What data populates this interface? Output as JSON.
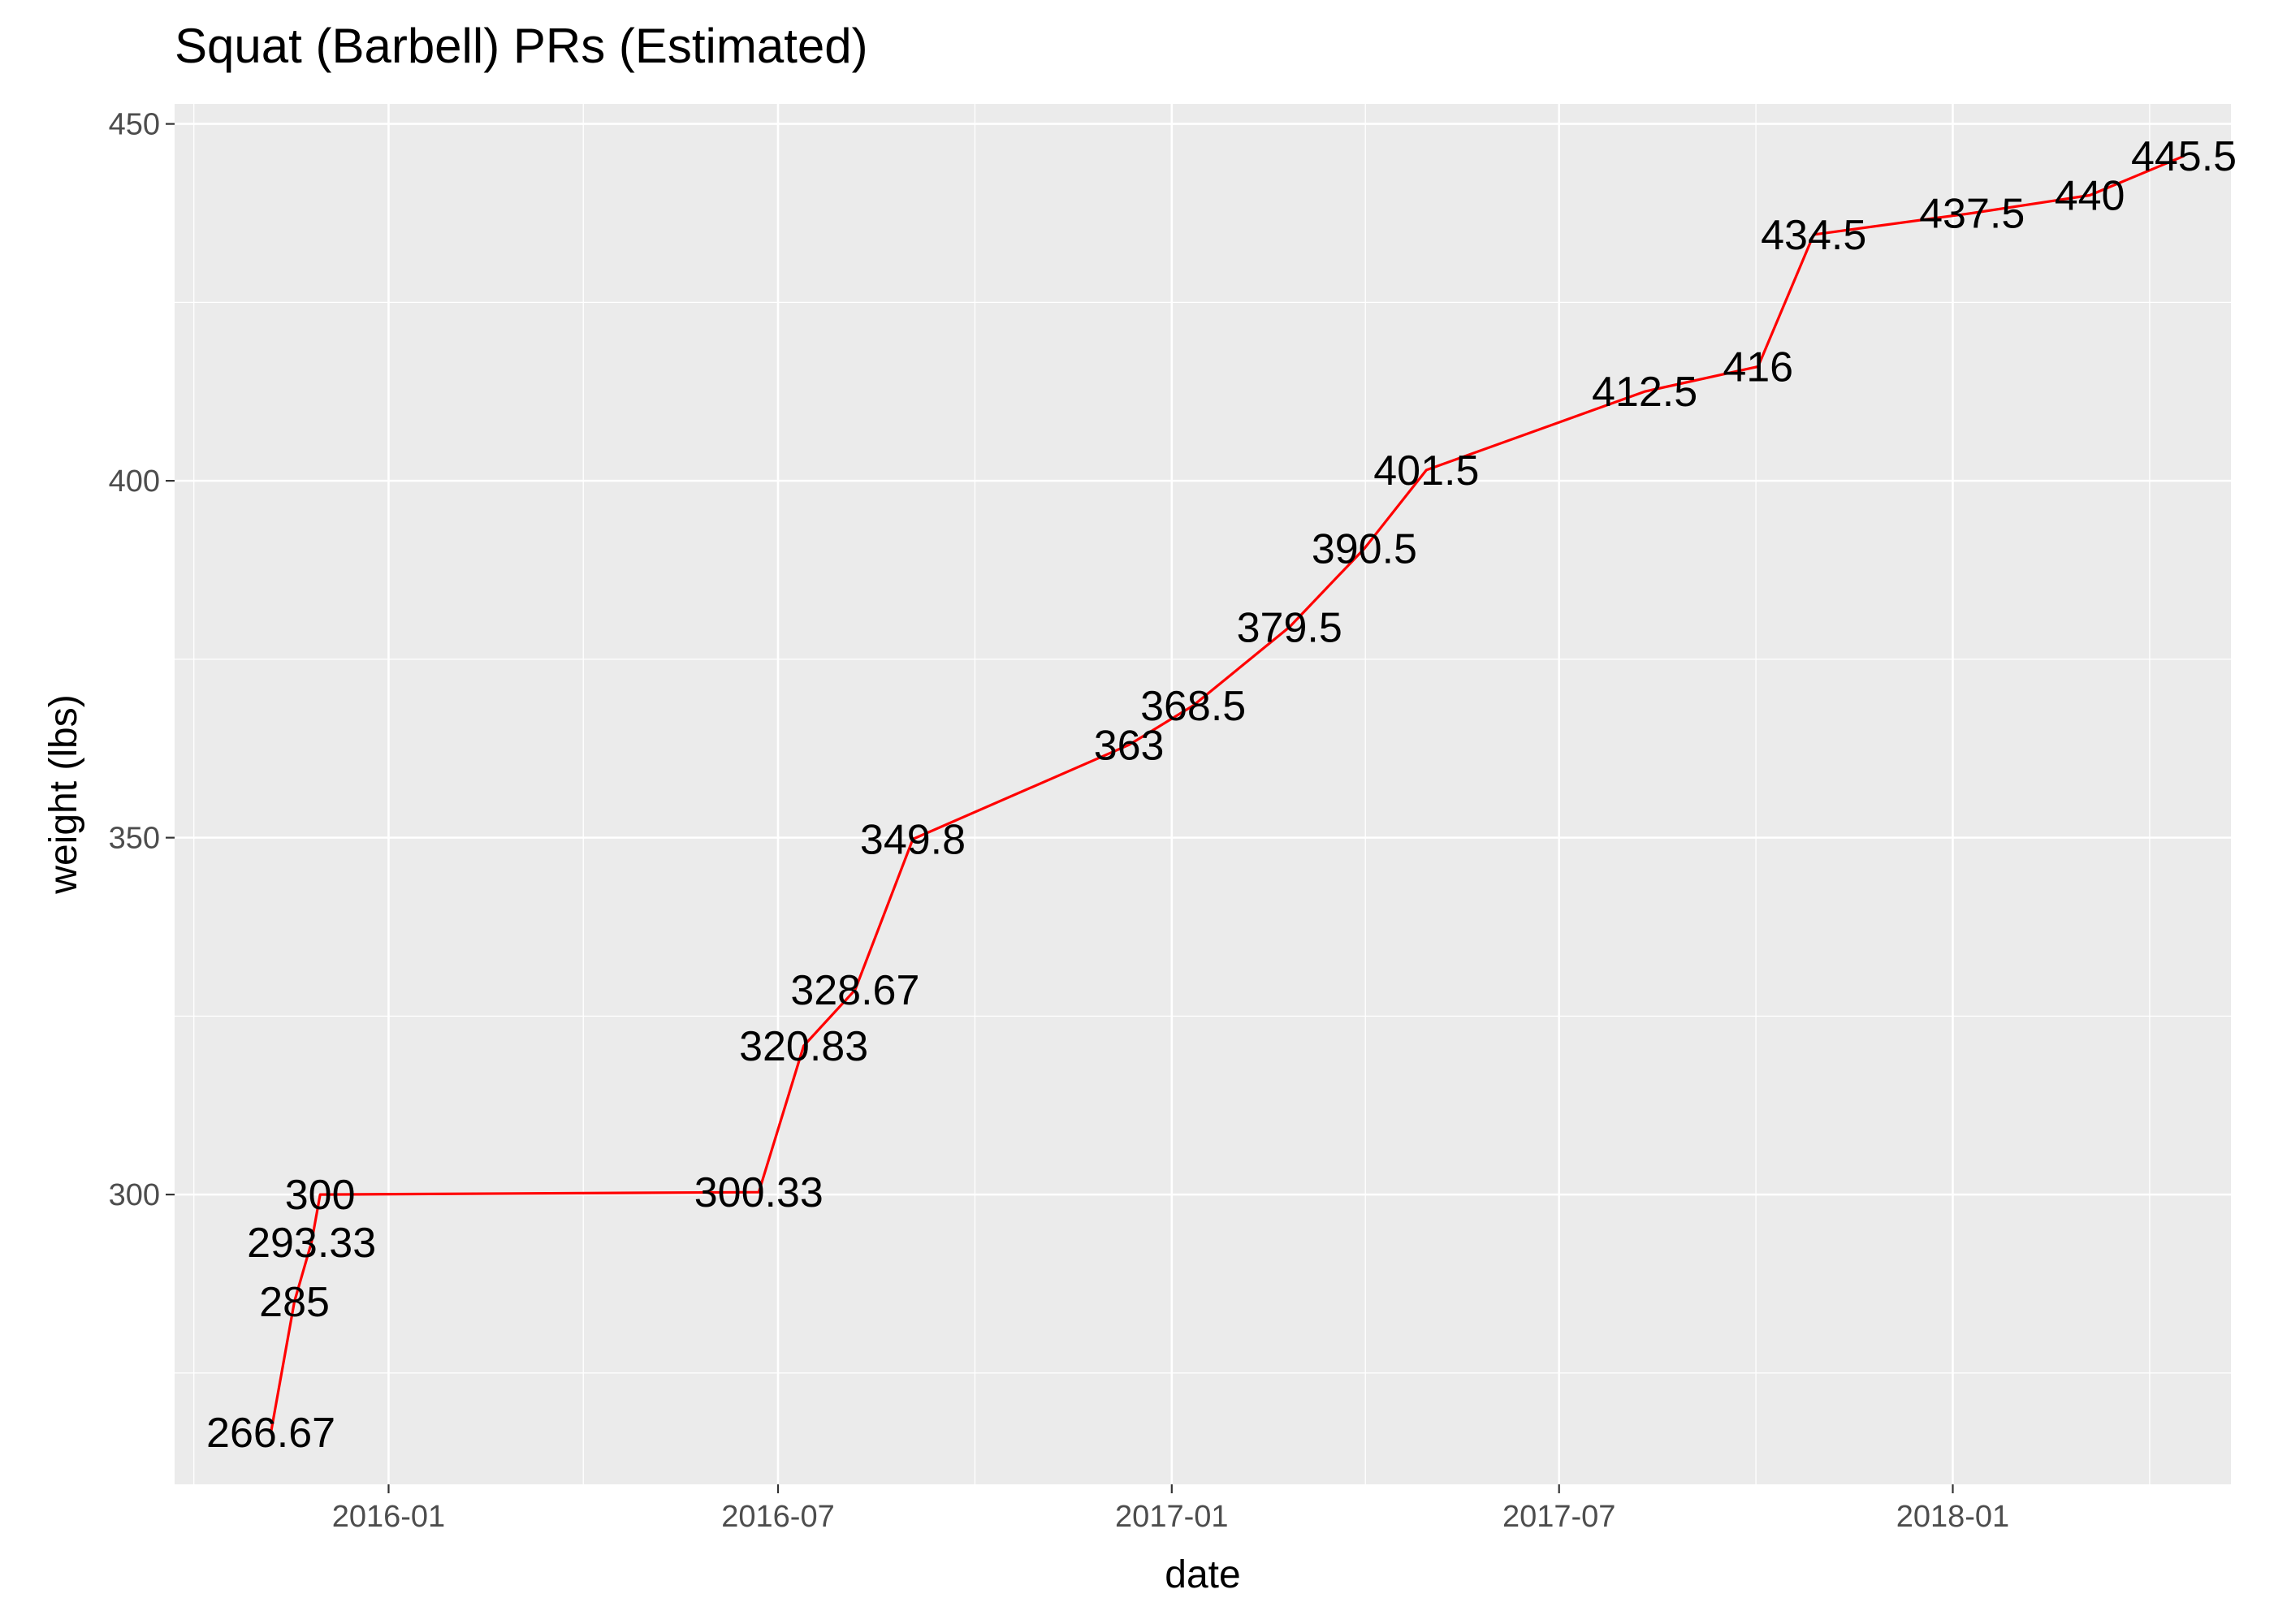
{
  "title": "Squat (Barbell) PRs (Estimated)",
  "chart_data": {
    "type": "line",
    "title": "Squat (Barbell) PRs (Estimated)",
    "xlabel": "date",
    "ylabel": "weight (lbs)",
    "x_type": "date",
    "xlim": [
      "2015-09-23",
      "2018-05-11"
    ],
    "ylim": [
      259.4,
      452.8
    ],
    "x_ticks": [
      "2016-01-01",
      "2016-07-01",
      "2017-01-01",
      "2017-07-01",
      "2018-01-01"
    ],
    "x_tick_labels": [
      "2016-01",
      "2016-07",
      "2017-01",
      "2017-07",
      "2018-01"
    ],
    "y_ticks": [
      300,
      350,
      400,
      450
    ],
    "y_tick_labels": [
      "300",
      "350",
      "400",
      "450"
    ],
    "grid": true,
    "legend": "none",
    "line_color": "#ff0000",
    "panel_background": "#ebebeb",
    "series": [
      {
        "points": [
          {
            "x": "2015-11-07",
            "y": 266.67,
            "label": "266.67"
          },
          {
            "x": "2015-11-18",
            "y": 285,
            "label": "285"
          },
          {
            "x": "2015-11-26",
            "y": 293.33,
            "label": "293.33"
          },
          {
            "x": "2015-11-30",
            "y": 300,
            "label": "300"
          },
          {
            "x": "2016-06-22",
            "y": 300.33,
            "label": "300.33"
          },
          {
            "x": "2016-07-13",
            "y": 320.83,
            "label": "320.83"
          },
          {
            "x": "2016-08-06",
            "y": 328.67,
            "label": "328.67"
          },
          {
            "x": "2016-09-02",
            "y": 349.8,
            "label": "349.8"
          },
          {
            "x": "2016-12-12",
            "y": 363,
            "label": "363"
          },
          {
            "x": "2017-01-11",
            "y": 368.5,
            "label": "368.5"
          },
          {
            "x": "2017-02-25",
            "y": 379.5,
            "label": "379.5"
          },
          {
            "x": "2017-04-01",
            "y": 390.5,
            "label": "390.5"
          },
          {
            "x": "2017-04-30",
            "y": 401.5,
            "label": "401.5"
          },
          {
            "x": "2017-08-10",
            "y": 412.5,
            "label": "412.5"
          },
          {
            "x": "2017-10-02",
            "y": 416,
            "label": "416"
          },
          {
            "x": "2017-10-28",
            "y": 434.5,
            "label": "434.5"
          },
          {
            "x": "2018-01-10",
            "y": 437.5,
            "label": "437.5"
          },
          {
            "x": "2018-03-06",
            "y": 440,
            "label": "440"
          },
          {
            "x": "2018-04-19",
            "y": 445.5,
            "label": "445.5"
          }
        ]
      }
    ]
  }
}
